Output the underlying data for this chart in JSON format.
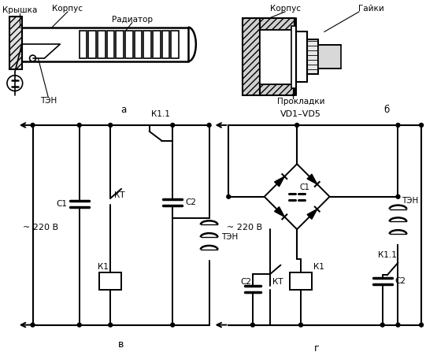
{
  "bg_color": "#ffffff",
  "line_color": "#000000",
  "text_color": "#000000",
  "fig_width": 5.41,
  "fig_height": 4.61,
  "dpi": 100,
  "labels": {
    "kryshka": "Крышка",
    "korpus_a": "Корпус",
    "radiator": "Радиатор",
    "ten_a": "ТЭН",
    "a": "а",
    "korpus_b": "Корпус",
    "gayki": "Гайки",
    "prokladki": "Прокладки",
    "b": "б",
    "v_label": "в",
    "g_label": "г",
    "v_220": "~ 220 В",
    "v_220_2": "~ 220 В",
    "k1_v": "К1",
    "k1_1_v": "К1.1",
    "kt_v": "КТ",
    "c1_v": "С1",
    "c2_v": "С2",
    "ten_v": "ТЭН",
    "vd1vd5": "VD1–VD5",
    "c1_g": "С1",
    "k1_g": "К1",
    "k1_1_g": "К1.1",
    "kt_g": "КТ",
    "c2_g": "С2",
    "c2_g2": "С2",
    "ten_g": "ТЭН"
  }
}
